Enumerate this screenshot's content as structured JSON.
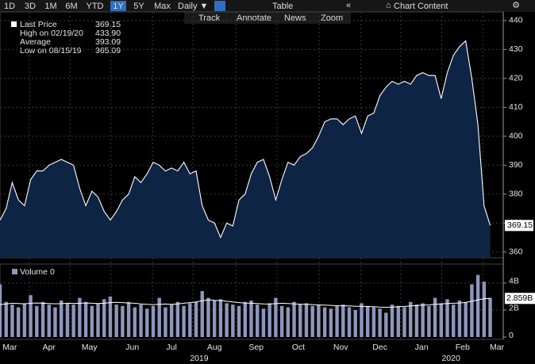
{
  "toolbar": {
    "ranges": [
      "1D",
      "3D",
      "1M",
      "6M",
      "YTD",
      "1Y",
      "5Y",
      "Max"
    ],
    "active": "1Y",
    "frequency": "Daily ▼",
    "table": "Table",
    "content": "Chart Content",
    "tools": [
      "Track",
      "Annotate",
      "News",
      "Zoom"
    ]
  },
  "legend": [
    {
      "name": "Last Price",
      "value": "369.15"
    },
    {
      "name": "High on 02/19/20",
      "value": "433.90"
    },
    {
      "name": "Average",
      "value": "393.09"
    },
    {
      "name": "Low on 08/15/19",
      "value": "365.09"
    }
  ],
  "chart_data": [
    {
      "type": "area",
      "color": "#ffffff",
      "fill": "#0e2445",
      "values": [
        371,
        375,
        384,
        378,
        376,
        385,
        388,
        388,
        390,
        391,
        392,
        391,
        390,
        382,
        376,
        381,
        379,
        374,
        371,
        374,
        378,
        380,
        386,
        384,
        387,
        391,
        390,
        388,
        389,
        388,
        391,
        387,
        388,
        376,
        371,
        370,
        365,
        370,
        369,
        378,
        380,
        387,
        391,
        392,
        386,
        378,
        385,
        391,
        390,
        393,
        394,
        396,
        400,
        405,
        406,
        406,
        404,
        406,
        407,
        401,
        407,
        408,
        414,
        417,
        419,
        418,
        419,
        418,
        421,
        422,
        421,
        421,
        413,
        422,
        428,
        431,
        433,
        420,
        404,
        376,
        369.15
      ],
      "last_label": "369.15",
      "xlim": [
        0,
        82
      ],
      "ylim": [
        358,
        443
      ],
      "yticks": [
        360,
        370,
        380,
        390,
        400,
        410,
        420,
        430,
        440
      ],
      "grid": true,
      "xgrid": [
        4.8,
        11.4,
        18.1,
        24.9,
        31.5,
        38.5,
        45.2,
        52.1,
        58.9,
        65.4,
        72.1,
        78.8
      ],
      "xticks": [
        {
          "value": 1.6,
          "label": "Mar"
        },
        {
          "value": 8.0,
          "label": "Apr"
        },
        {
          "value": 14.6,
          "label": "May"
        },
        {
          "value": 21.6,
          "label": "Jun"
        },
        {
          "value": 28.0,
          "label": "Jul"
        },
        {
          "value": 35.0,
          "label": "Aug"
        },
        {
          "value": 41.8,
          "label": "Sep"
        },
        {
          "value": 48.7,
          "label": "Oct"
        },
        {
          "value": 55.6,
          "label": "Nov"
        },
        {
          "value": 62.0,
          "label": "Dec"
        },
        {
          "value": 68.8,
          "label": "Jan"
        },
        {
          "value": 75.5,
          "label": "Feb"
        },
        {
          "value": 81.1,
          "label": "Mar"
        }
      ],
      "years": [
        {
          "value": 32.5,
          "label": "2019"
        },
        {
          "value": 73.6,
          "label": "2020"
        }
      ]
    },
    {
      "type": "bar",
      "legend": "Volume 0",
      "color": "#8d97bd",
      "xlim": [
        0,
        82
      ],
      "ylim": [
        0,
        5.4
      ],
      "yticks": [
        {
          "value": 0,
          "label": "0"
        },
        {
          "value": 2,
          "label": "2B"
        },
        {
          "value": 4,
          "label": "4B"
        }
      ],
      "values": [
        3.9,
        2.6,
        2.4,
        2.2,
        2.5,
        3.1,
        2.3,
        2.6,
        2.4,
        2.2,
        2.7,
        2.5,
        2.4,
        2.9,
        2.6,
        2.3,
        2.5,
        2.8,
        3.0,
        2.4,
        2.3,
        2.6,
        2.2,
        2.4,
        2.1,
        2.3,
        2.9,
        2.2,
        2.4,
        2.6,
        2.3,
        2.5,
        2.6,
        3.4,
        2.9,
        2.7,
        2.8,
        2.5,
        2.4,
        2.3,
        2.6,
        2.7,
        2.4,
        2.1,
        2.5,
        2.9,
        2.3,
        2.2,
        2.6,
        2.4,
        2.5,
        2.3,
        2.4,
        2.2,
        2.1,
        2.3,
        2.4,
        2.2,
        2.0,
        2.5,
        2.3,
        2.2,
        2.1,
        1.8,
        2.4,
        2.3,
        2.2,
        2.6,
        2.4,
        2.5,
        2.3,
        2.9,
        2.5,
        2.8,
        2.4,
        2.7,
        2.6,
        3.9,
        4.6,
        4.1,
        2.9
      ],
      "line": {
        "color": "#ffffff",
        "values": [
          2.4,
          2.45,
          2.5,
          2.48,
          2.46,
          2.5,
          2.52,
          2.5,
          2.48,
          2.46,
          2.47,
          2.5,
          2.49,
          2.5,
          2.52,
          2.5,
          2.48,
          2.5,
          2.55,
          2.57,
          2.55,
          2.52,
          2.5,
          2.45,
          2.42,
          2.4,
          2.42,
          2.44,
          2.42,
          2.45,
          2.5,
          2.55,
          2.6,
          2.68,
          2.75,
          2.72,
          2.7,
          2.65,
          2.6,
          2.55,
          2.52,
          2.5,
          2.48,
          2.45,
          2.44,
          2.47,
          2.5,
          2.48,
          2.45,
          2.43,
          2.42,
          2.4,
          2.38,
          2.36,
          2.34,
          2.32,
          2.31,
          2.3,
          2.28,
          2.27,
          2.26,
          2.25,
          2.22,
          2.2,
          2.22,
          2.24,
          2.26,
          2.3,
          2.33,
          2.36,
          2.38,
          2.42,
          2.45,
          2.48,
          2.5,
          2.52,
          2.56,
          2.65,
          2.75,
          2.83,
          2.859
        ]
      },
      "line_label": "2.859B"
    }
  ]
}
